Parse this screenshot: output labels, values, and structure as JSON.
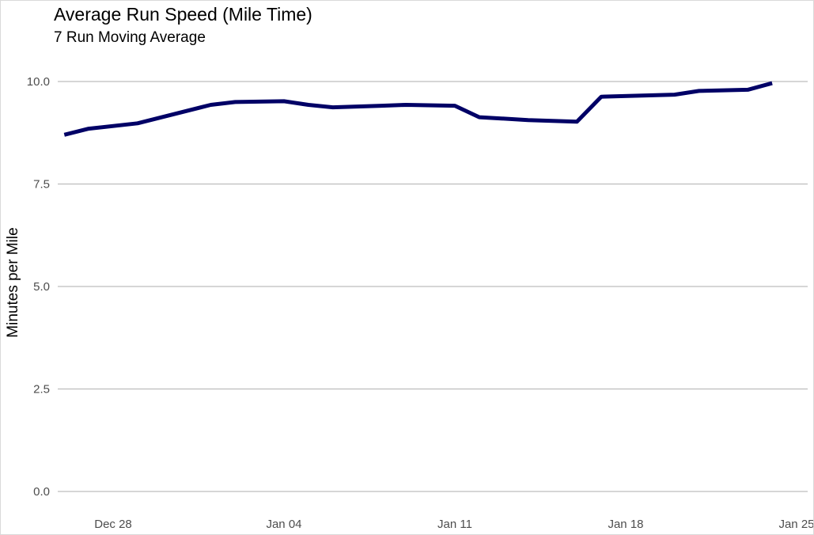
{
  "chart_data": {
    "type": "line",
    "title": "Average Run Speed (Mile Time)",
    "subtitle": "7 Run Moving Average",
    "xlabel": "",
    "ylabel": "Minutes per Mile",
    "x_ticks": [
      "Dec 28",
      "Jan 04",
      "Jan 11",
      "Jan 18",
      "Jan 25"
    ],
    "y_ticks": [
      "0.0",
      "2.5",
      "5.0",
      "7.5",
      "10.0"
    ],
    "ylim": [
      0,
      10.3
    ],
    "xlim": [
      "2021-12-26",
      "2022-01-25"
    ],
    "grid": "horizontal",
    "line_color": "#000066",
    "series": [
      {
        "x": [
          "2021-12-26",
          "2021-12-27",
          "2021-12-29",
          "2022-01-01",
          "2022-01-02",
          "2022-01-04",
          "2022-01-05",
          "2022-01-06",
          "2022-01-08",
          "2022-01-09",
          "2022-01-11",
          "2022-01-12",
          "2022-01-14",
          "2022-01-16",
          "2022-01-17",
          "2022-01-20",
          "2022-01-21",
          "2022-01-23",
          "2022-01-24"
        ],
        "y": [
          8.7,
          8.85,
          8.98,
          9.43,
          9.5,
          9.52,
          9.43,
          9.37,
          9.41,
          9.43,
          9.41,
          9.13,
          9.06,
          9.02,
          9.63,
          9.68,
          9.77,
          9.8,
          9.96
        ]
      }
    ]
  }
}
